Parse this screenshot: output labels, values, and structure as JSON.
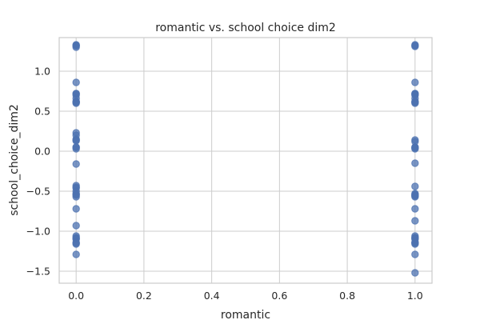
{
  "chart_data": {
    "type": "scatter",
    "title": "romantic vs. school choice dim2",
    "xlabel": "romantic",
    "ylabel": "school_choice_dim2",
    "xlim": [
      -0.05,
      1.05
    ],
    "ylim": [
      -1.65,
      1.42
    ],
    "xticks": [
      0.0,
      0.2,
      0.4,
      0.6,
      0.8,
      1.0
    ],
    "xtick_labels": [
      "0.0",
      "0.2",
      "0.4",
      "0.6",
      "0.8",
      "1.0"
    ],
    "yticks": [
      -1.5,
      -1.0,
      -0.5,
      0.0,
      0.5,
      1.0
    ],
    "ytick_labels": [
      "−1.5",
      "−1.0",
      "−0.5",
      "0.0",
      "0.5",
      "1.0"
    ],
    "grid": true,
    "point_color": "#4c72b0",
    "series": [
      {
        "x": [
          0,
          0,
          0,
          0,
          0,
          0,
          0,
          0,
          0,
          0,
          0,
          0,
          0,
          0,
          0,
          0,
          0,
          0,
          0,
          0,
          0,
          0,
          0,
          0,
          0,
          0,
          0,
          0,
          0,
          0,
          0,
          0,
          0,
          0,
          0,
          0,
          0,
          0,
          0,
          0,
          1,
          1,
          1,
          1,
          1,
          1,
          1,
          1,
          1,
          1,
          1,
          1,
          1,
          1,
          1,
          1,
          1,
          1,
          1,
          1,
          1,
          1,
          1,
          1,
          1,
          1,
          1,
          1,
          1,
          1,
          1,
          1,
          1,
          1,
          1,
          1,
          1,
          1,
          1,
          1
        ],
        "y": [
          1.33,
          1.32,
          1.3,
          0.86,
          0.72,
          0.7,
          0.66,
          0.62,
          0.6,
          0.23,
          0.2,
          0.15,
          0.13,
          0.05,
          0.03,
          -0.16,
          -0.43,
          -0.45,
          -0.5,
          -0.53,
          -0.55,
          -0.57,
          -0.72,
          -0.93,
          -1.06,
          -1.08,
          -1.1,
          -1.14,
          -1.16,
          -1.29,
          0.72,
          0.62,
          0.14,
          0.05,
          -0.46,
          -0.54,
          -1.09,
          -1.15,
          1.32,
          0.61,
          1.33,
          1.31,
          0.86,
          0.72,
          0.7,
          0.66,
          0.62,
          0.6,
          0.14,
          0.12,
          0.05,
          0.03,
          -0.15,
          -0.44,
          -0.53,
          -0.55,
          -0.57,
          -0.72,
          -0.87,
          -1.06,
          -1.08,
          -1.1,
          -1.14,
          -1.16,
          -1.29,
          -1.52,
          0.72,
          0.61,
          0.04,
          -0.55,
          -1.09,
          -1.14,
          0.62,
          0.05,
          -0.54,
          -1.08,
          1.32,
          0.71,
          -0.56,
          -1.15
        ]
      }
    ]
  }
}
